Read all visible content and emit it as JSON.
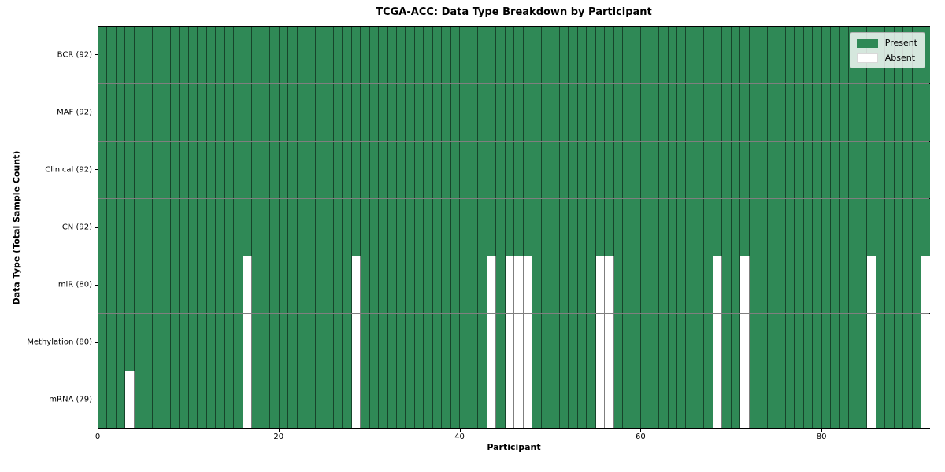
{
  "title": "TCGA-ACC: Data Type Breakdown by Participant",
  "xlabel": "Participant",
  "ylabel": "Data Type (Total Sample Count)",
  "legend": {
    "present_label": "Present",
    "absent_label": "Absent"
  },
  "colors": {
    "present": "#2f8956",
    "absent": "#ffffff",
    "legend_border": "#b0b0b0"
  },
  "chart_data": {
    "type": "heatmap",
    "title": "TCGA-ACC: Data Type Breakdown by Participant",
    "xlabel": "Participant",
    "ylabel": "Data Type (Total Sample Count)",
    "n_participants": 92,
    "x_ticks": [
      0,
      20,
      40,
      60,
      80
    ],
    "x_range": [
      0,
      92
    ],
    "legend_entries": [
      "Present",
      "Absent"
    ],
    "legend_position": "upper right",
    "grid": "cell-borders",
    "value_encoding": {
      "present": 1,
      "absent": 0
    },
    "rows": [
      {
        "label": "BCR (92)",
        "data_type": "BCR",
        "present_count": 92,
        "absent_participants": []
      },
      {
        "label": "MAF (92)",
        "data_type": "MAF",
        "present_count": 92,
        "absent_participants": []
      },
      {
        "label": "Clinical (92)",
        "data_type": "Clinical",
        "present_count": 92,
        "absent_participants": []
      },
      {
        "label": "CN (92)",
        "data_type": "CN",
        "present_count": 92,
        "absent_participants": []
      },
      {
        "label": "miR (80)",
        "data_type": "miR",
        "present_count": 80,
        "absent_participants": [
          16,
          28,
          43,
          45,
          46,
          47,
          55,
          56,
          68,
          71,
          85,
          91
        ]
      },
      {
        "label": "Methylation (80)",
        "data_type": "Methylation",
        "present_count": 80,
        "absent_participants": [
          16,
          28,
          43,
          45,
          46,
          47,
          55,
          56,
          68,
          71,
          85,
          91
        ]
      },
      {
        "label": "mRNA (79)",
        "data_type": "mRNA",
        "present_count": 79,
        "absent_participants": [
          3,
          16,
          28,
          43,
          45,
          46,
          47,
          55,
          56,
          68,
          71,
          85,
          91
        ]
      }
    ]
  }
}
